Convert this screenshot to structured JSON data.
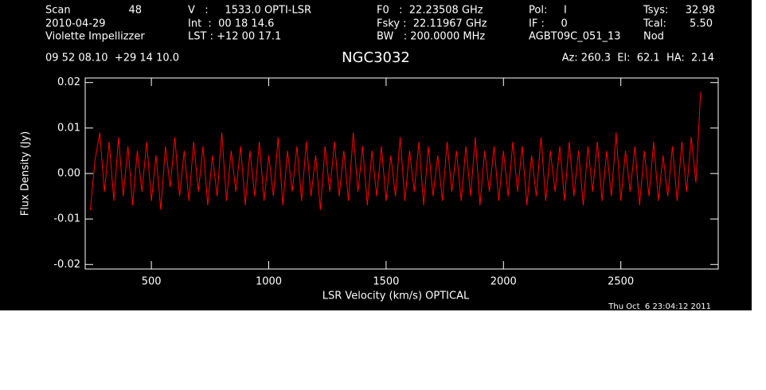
{
  "header": [
    "Scan",
    "48",
    "2010-04-29",
    "Violette Impellizzer",
    "V   :     1533.0 OPTI-LSR",
    "Int  :  00 18 14.6",
    "LST : +12 00 17.1",
    "F0   :  22.23508 GHz",
    "Fsky :  22.11967 GHz",
    "BW   : 200.0000 MHz",
    "Pol:     I",
    "IF :     0",
    "AGBT09C_051_13",
    "Tsys:",
    "32.98",
    "Tcal:",
    "5.50",
    "Nod",
    "09 52 08.10  +29 14 10.0",
    "Az: 260.3  El:  62.1  HA:  2.14"
  ],
  "footer": "Thu Oct  6 23:04:12 2011",
  "chart_data": {
    "type": "line",
    "title": "NGC3032",
    "x_label": "LSR Velocity (km/s) OPTICAL",
    "y_label": "Flux Density (Jy)",
    "xlim": [
      218,
      2915
    ],
    "ylim": [
      -0.021,
      0.021
    ],
    "xticks": [
      500,
      1000,
      1500,
      2000,
      2500
    ],
    "yticks": [
      0.02,
      0.01,
      {
        "value": 0,
        "label": "0.00"
      },
      -0.01,
      -0.02
    ],
    "x": [
      240,
      260,
      280,
      300,
      320,
      340,
      360,
      380,
      400,
      420,
      440,
      460,
      480,
      500,
      520,
      540,
      560,
      580,
      600,
      620,
      640,
      660,
      680,
      700,
      720,
      740,
      760,
      780,
      800,
      820,
      840,
      860,
      880,
      900,
      920,
      940,
      960,
      980,
      1000,
      1020,
      1040,
      1060,
      1080,
      1100,
      1120,
      1140,
      1160,
      1180,
      1200,
      1220,
      1240,
      1260,
      1280,
      1300,
      1320,
      1340,
      1360,
      1380,
      1400,
      1420,
      1440,
      1460,
      1480,
      1500,
      1520,
      1540,
      1560,
      1580,
      1600,
      1620,
      1640,
      1660,
      1680,
      1700,
      1720,
      1740,
      1760,
      1780,
      1800,
      1820,
      1840,
      1860,
      1880,
      1900,
      1920,
      1940,
      1960,
      1980,
      2000,
      2020,
      2040,
      2060,
      2080,
      2100,
      2120,
      2140,
      2160,
      2180,
      2200,
      2220,
      2240,
      2260,
      2280,
      2300,
      2320,
      2340,
      2360,
      2380,
      2400,
      2420,
      2440,
      2460,
      2480,
      2500,
      2520,
      2540,
      2560,
      2580,
      2600,
      2620,
      2640,
      2660,
      2680,
      2700,
      2720,
      2740,
      2760,
      2780,
      2800,
      2820,
      2840
    ],
    "series": [
      {
        "color": "#ff0000",
        "values": [
          -0.008,
          0.003,
          0.009,
          -0.004,
          0.007,
          -0.006,
          0.008,
          -0.005,
          0.006,
          -0.007,
          0.005,
          -0.004,
          0.007,
          -0.006,
          0.004,
          -0.008,
          0.006,
          -0.003,
          0.008,
          -0.005,
          0.005,
          -0.006,
          0.007,
          -0.004,
          0.006,
          -0.007,
          0.004,
          -0.005,
          0.009,
          -0.006,
          0.005,
          -0.004,
          0.006,
          -0.007,
          0.005,
          -0.005,
          0.007,
          -0.006,
          0.004,
          -0.005,
          0.008,
          -0.007,
          0.005,
          -0.004,
          0.006,
          -0.006,
          0.007,
          -0.005,
          0.004,
          -0.008,
          0.006,
          -0.004,
          0.007,
          -0.005,
          0.005,
          -0.006,
          0.009,
          -0.004,
          0.006,
          -0.007,
          0.005,
          -0.005,
          0.006,
          -0.006,
          0.004,
          -0.005,
          0.008,
          -0.006,
          0.005,
          -0.004,
          0.007,
          -0.007,
          0.006,
          -0.005,
          0.004,
          -0.006,
          0.007,
          -0.004,
          0.005,
          -0.006,
          0.006,
          -0.005,
          0.008,
          -0.007,
          0.005,
          -0.004,
          0.006,
          -0.006,
          0.005,
          -0.005,
          0.007,
          -0.004,
          0.006,
          -0.007,
          0.004,
          -0.005,
          0.008,
          -0.006,
          0.005,
          -0.004,
          0.006,
          -0.006,
          0.007,
          -0.005,
          0.005,
          -0.007,
          0.006,
          -0.004,
          0.007,
          -0.006,
          0.005,
          -0.005,
          0.009,
          -0.006,
          0.005,
          -0.004,
          0.006,
          -0.007,
          0.005,
          -0.005,
          0.007,
          -0.006,
          0.004,
          -0.005,
          0.006,
          -0.006,
          0.007,
          -0.004,
          0.008,
          -0.002,
          0.018
        ]
      }
    ]
  }
}
